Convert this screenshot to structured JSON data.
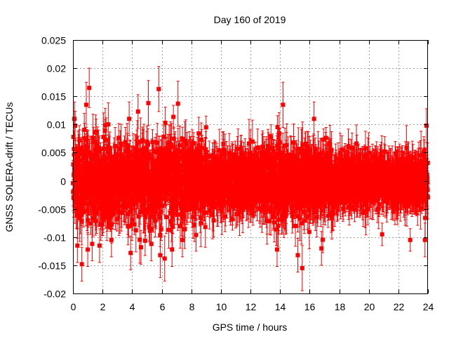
{
  "chart_data": {
    "type": "scatter",
    "title": "Day 160 of 2019",
    "xlabel": "GPS time / hours",
    "ylabel": "GNSS SOLERA-drift / TECUs",
    "xlim": [
      0,
      24
    ],
    "ylim": [
      -0.02,
      0.025
    ],
    "x_ticks": [
      0,
      2,
      4,
      6,
      8,
      10,
      12,
      14,
      16,
      18,
      20,
      22,
      24
    ],
    "y_ticks": [
      -0.02,
      -0.015,
      -0.01,
      -0.005,
      0,
      0.005,
      0.01,
      0.015,
      0.02,
      0.025
    ],
    "x_tick_labels": [
      "0",
      "2",
      "4",
      "6",
      "8",
      "10",
      "12",
      "14",
      "16",
      "18",
      "20",
      "22",
      "24"
    ],
    "y_tick_labels": [
      "-0.02",
      "-0.015",
      "-0.01",
      "-0.005",
      "0",
      "0.005",
      "0.01",
      "0.015",
      "0.02",
      "0.025"
    ],
    "grid": true,
    "series_color": "#ff0000",
    "series": [
      {
        "name": "SOLERA drift",
        "marker": "square",
        "error_bars": true,
        "note": "dense cloud of ~2900 points (30 s sampling) spanning 0-24 h; values scatter roughly within ±0.008 TECU, wider spread 0-9 h and 13-17 h",
        "highlighted_points": [
          {
            "x": 0.1,
            "y": 0.011,
            "err": 0.003
          },
          {
            "x": 0.3,
            "y": -0.0115,
            "err": 0.003
          },
          {
            "x": 0.6,
            "y": -0.0148,
            "err": 0.003
          },
          {
            "x": 0.9,
            "y": 0.0135,
            "err": 0.004
          },
          {
            "x": 1.1,
            "y": 0.0165,
            "err": 0.0035
          },
          {
            "x": 1.0,
            "y": -0.0122,
            "err": 0.003
          },
          {
            "x": 1.3,
            "y": -0.0112,
            "err": 0.003
          },
          {
            "x": 1.8,
            "y": -0.0115,
            "err": 0.003
          },
          {
            "x": 2.6,
            "y": -0.0105,
            "err": 0.003
          },
          {
            "x": 3.8,
            "y": 0.011,
            "err": 0.003
          },
          {
            "x": 3.9,
            "y": -0.0128,
            "err": 0.003
          },
          {
            "x": 4.4,
            "y": 0.0123,
            "err": 0.003
          },
          {
            "x": 4.6,
            "y": -0.0118,
            "err": 0.003
          },
          {
            "x": 5.1,
            "y": 0.0138,
            "err": 0.004
          },
          {
            "x": 5.3,
            "y": -0.0112,
            "err": 0.003
          },
          {
            "x": 5.8,
            "y": 0.0163,
            "err": 0.004
          },
          {
            "x": 5.9,
            "y": -0.0132,
            "err": 0.004
          },
          {
            "x": 6.2,
            "y": -0.0138,
            "err": 0.004
          },
          {
            "x": 6.7,
            "y": -0.0122,
            "err": 0.003
          },
          {
            "x": 7.1,
            "y": 0.0137,
            "err": 0.004
          },
          {
            "x": 7.4,
            "y": -0.0105,
            "err": 0.003
          },
          {
            "x": 9.0,
            "y": 0.0095,
            "err": 0.002
          },
          {
            "x": 13.8,
            "y": -0.0122,
            "err": 0.003
          },
          {
            "x": 14.2,
            "y": 0.0135,
            "err": 0.004
          },
          {
            "x": 15.2,
            "y": -0.0132,
            "err": 0.003
          },
          {
            "x": 15.5,
            "y": -0.0155,
            "err": 0.004
          },
          {
            "x": 16.3,
            "y": 0.011,
            "err": 0.003
          },
          {
            "x": 16.8,
            "y": -0.012,
            "err": 0.003
          },
          {
            "x": 20.9,
            "y": -0.0095,
            "err": 0.002
          },
          {
            "x": 22.8,
            "y": -0.0105,
            "err": 0.002
          },
          {
            "x": 23.8,
            "y": -0.0105,
            "err": 0.003
          },
          {
            "x": 23.9,
            "y": 0.0098,
            "err": 0.003
          }
        ]
      }
    ]
  }
}
